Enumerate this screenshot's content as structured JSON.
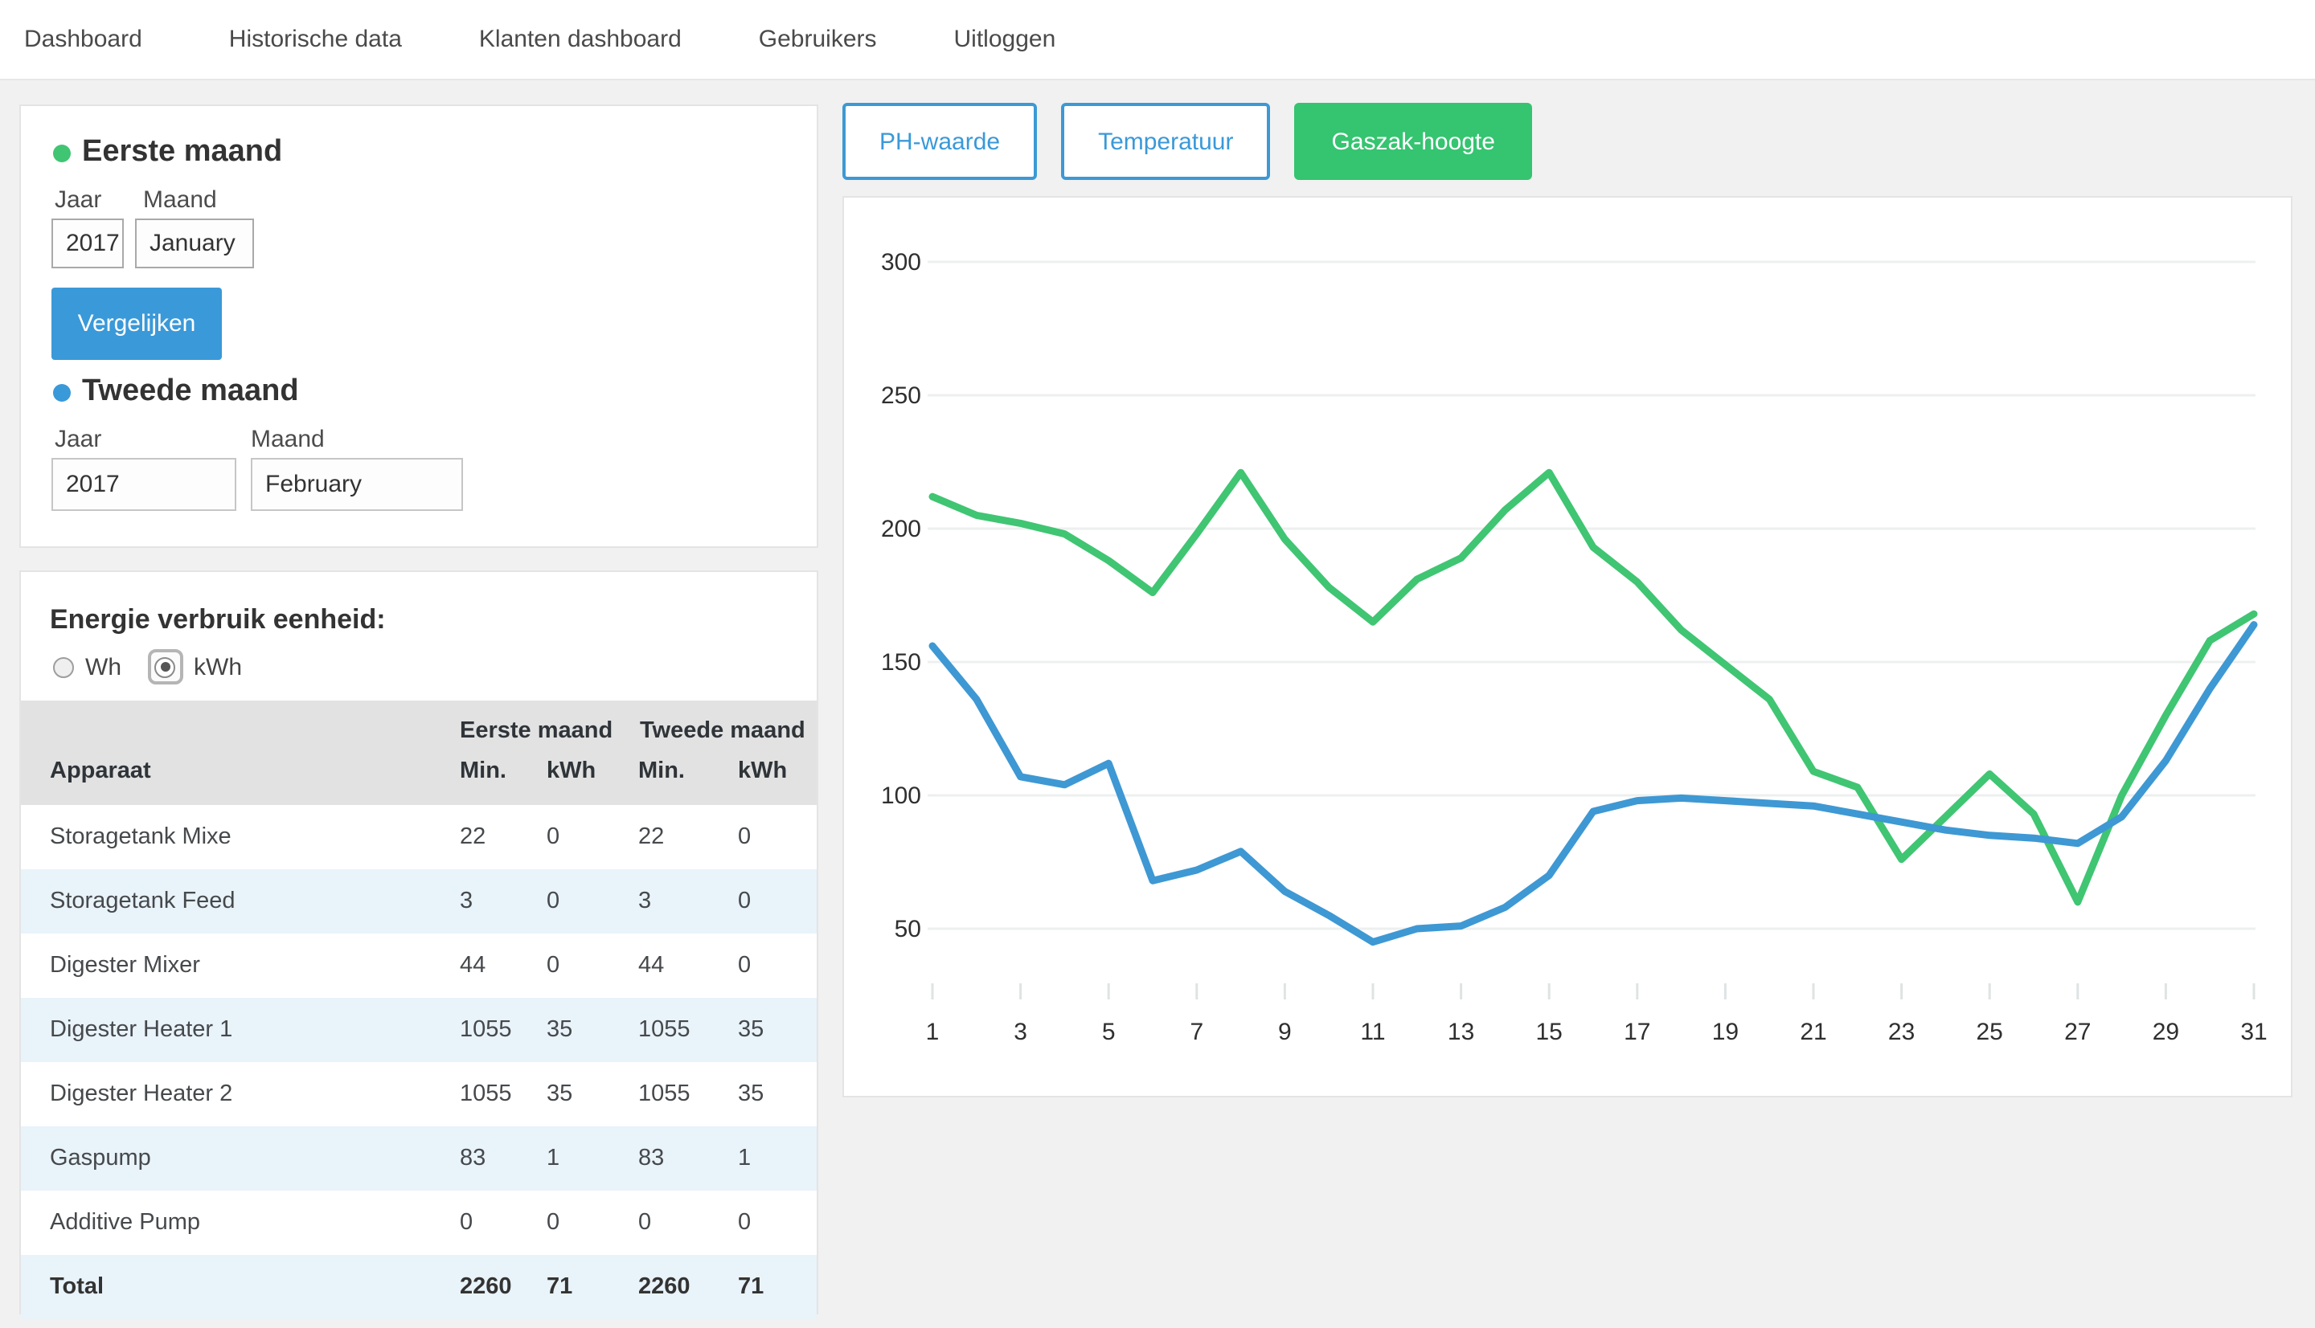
{
  "nav": {
    "items": [
      "Dashboard",
      "Historische data",
      "Klanten dashboard",
      "Gebruikers",
      "Uitloggen"
    ]
  },
  "compare_panel": {
    "first_month": {
      "label": "Eerste maand",
      "year_label": "Jaar",
      "month_label": "Maand",
      "year": "2017",
      "month": "January",
      "dot_color": "#40c573"
    },
    "compare_button": "Vergelijken",
    "second_month": {
      "label": "Tweede maand",
      "year_label": "Jaar",
      "month_label": "Maand",
      "year": "2017",
      "month": "February",
      "dot_color": "#3a99d8"
    }
  },
  "energy_panel": {
    "heading": "Energie verbruik eenheid:",
    "unit_options": [
      {
        "label": "Wh",
        "checked": false
      },
      {
        "label": "kWh",
        "checked": true
      }
    ],
    "table": {
      "group_headers": [
        "Eerste maand",
        "Tweede maand"
      ],
      "columns": [
        "Apparaat",
        "Min.",
        "kWh",
        "Min.",
        "kWh"
      ],
      "rows": [
        {
          "apparaat": "Storagetank Mixe",
          "values": [
            "22",
            "0",
            "22",
            "0"
          ]
        },
        {
          "apparaat": "Storagetank Feed",
          "values": [
            "3",
            "0",
            "3",
            "0"
          ]
        },
        {
          "apparaat": "Digester Mixer",
          "values": [
            "44",
            "0",
            "44",
            "0"
          ]
        },
        {
          "apparaat": "Digester Heater 1",
          "values": [
            "1055",
            "35",
            "1055",
            "35"
          ]
        },
        {
          "apparaat": "Digester Heater 2",
          "values": [
            "1055",
            "35",
            "1055",
            "35"
          ]
        },
        {
          "apparaat": "Gaspump",
          "values": [
            "83",
            "1",
            "83",
            "1"
          ]
        },
        {
          "apparaat": "Additive Pump",
          "values": [
            "0",
            "0",
            "0",
            "0"
          ]
        }
      ],
      "total_row": {
        "apparaat": "Total",
        "values": [
          "2260",
          "71",
          "2260",
          "71"
        ]
      }
    }
  },
  "chart_tabs": [
    {
      "label": "PH-waarde",
      "active": false
    },
    {
      "label": "Temperatuur",
      "active": false
    },
    {
      "label": "Gaszak-hoogte",
      "active": true
    }
  ],
  "chart_data": {
    "type": "line",
    "title": "",
    "xlabel": "",
    "ylabel": "",
    "x": [
      1,
      2,
      3,
      4,
      5,
      6,
      7,
      8,
      9,
      10,
      11,
      12,
      13,
      14,
      15,
      16,
      17,
      18,
      19,
      20,
      21,
      22,
      23,
      24,
      25,
      26,
      27,
      28,
      29,
      30,
      31
    ],
    "x_tick_labels": [
      1,
      3,
      5,
      7,
      9,
      11,
      13,
      15,
      17,
      19,
      21,
      23,
      25,
      27,
      29,
      31
    ],
    "yticks": [
      300,
      250,
      200,
      150,
      100,
      50
    ],
    "ylim": [
      40,
      310
    ],
    "grid": true,
    "legend_position": "none",
    "series": [
      {
        "id": "eerste-maand",
        "name": "Eerste maand (Gaszak-hoogte)",
        "color": "#40c573",
        "values": [
          212,
          205,
          202,
          198,
          188,
          176,
          198,
          221,
          196,
          178,
          165,
          181,
          189,
          207,
          221,
          193,
          180,
          162,
          149,
          136,
          109,
          103,
          76,
          92,
          108,
          93,
          60,
          100,
          130,
          158,
          168
        ]
      },
      {
        "id": "tweede-maand",
        "name": "Tweede maand (Gaszak-hoogte)",
        "color": "#3e98d3",
        "values": [
          156,
          136,
          107,
          104,
          112,
          68,
          72,
          79,
          64,
          55,
          45,
          50,
          51,
          58,
          70,
          94,
          98,
          99,
          98,
          97,
          96,
          93,
          90,
          87,
          85,
          84,
          82,
          92,
          113,
          140,
          164
        ]
      }
    ]
  },
  "colors": {
    "accent_blue": "#3a99d8",
    "accent_green": "#35c470",
    "chart_green": "#40c573",
    "chart_blue": "#3e98d3",
    "stripe_blue": "#e9f3fa",
    "header_gray": "#e2e2e2",
    "page_bg": "#f1f1f1",
    "gridline": "#eef0f0"
  }
}
